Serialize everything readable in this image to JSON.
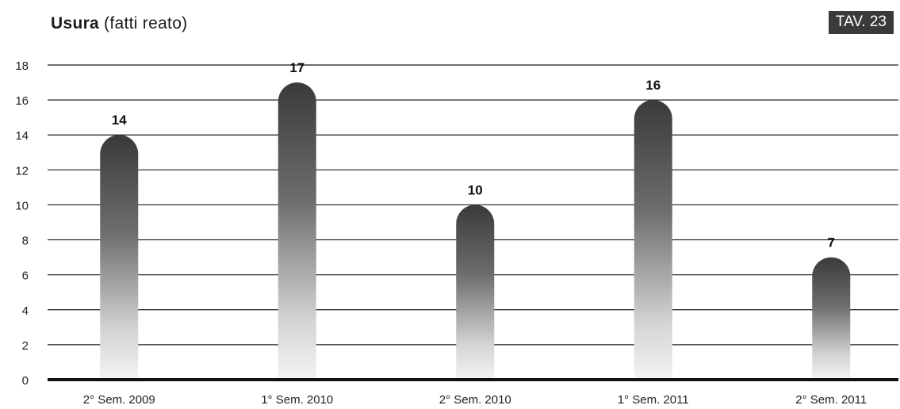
{
  "header": {
    "title_main": "Usura",
    "title_sub": "(fatti reato)",
    "badge": "TAV. 23"
  },
  "chart_data": {
    "type": "bar",
    "categories": [
      "2° Sem. 2009",
      "1° Sem. 2010",
      "2° Sem. 2010",
      "1° Sem. 2011",
      "2° Sem. 2011"
    ],
    "values": [
      14,
      17,
      10,
      16,
      7
    ],
    "data_labels": [
      "14",
      "17",
      "10",
      "16",
      "7"
    ],
    "title": "Usura (fatti reato)",
    "xlabel": "",
    "ylabel": "",
    "ylim": [
      0,
      18
    ],
    "yticks": [
      0,
      2,
      4,
      6,
      8,
      10,
      12,
      14,
      16,
      18
    ],
    "grid": true,
    "legend": "none",
    "bar_color_top": "#3a3a3a",
    "bar_color_bottom": "#f2f2f2"
  }
}
